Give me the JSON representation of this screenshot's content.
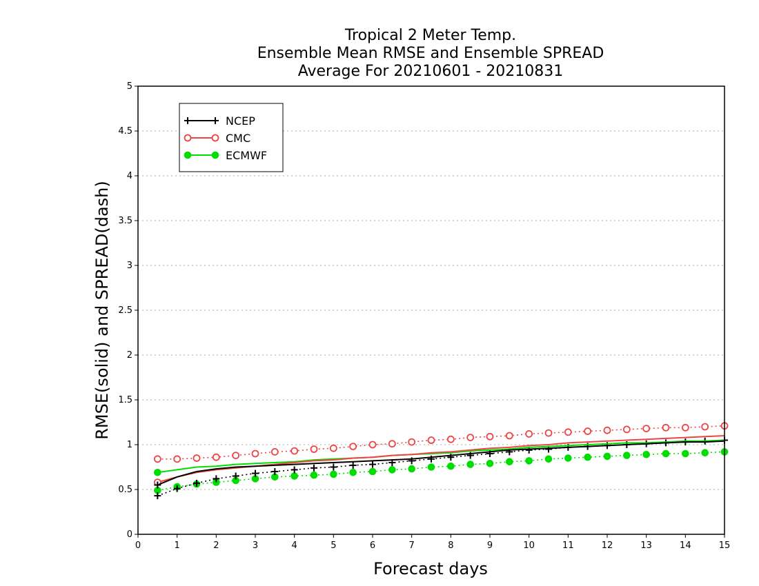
{
  "chart_data": {
    "type": "line",
    "title": [
      "Tropical 2 Meter Temp.",
      "Ensemble Mean RMSE and Ensemble SPREAD",
      "Average For 20210601 - 20210831"
    ],
    "xlabel": "Forecast days",
    "ylabel": "RMSE(solid) and SPREAD(dash)",
    "xlim": [
      0,
      15
    ],
    "ylim": [
      0,
      5
    ],
    "x_ticks": [
      "0",
      "1",
      "2",
      "3",
      "4",
      "5",
      "6",
      "7",
      "8",
      "9",
      "10",
      "11",
      "12",
      "13",
      "14",
      "15"
    ],
    "y_ticks": [
      "0",
      "0.5",
      "1",
      "1.5",
      "2",
      "2.5",
      "3",
      "3.5",
      "4",
      "4.5",
      "5"
    ],
    "grid": "horizontal dotted",
    "legend_position": "top-left",
    "x": [
      0.5,
      1,
      1.5,
      2,
      2.5,
      3,
      3.5,
      4,
      4.5,
      5,
      5.5,
      6,
      6.5,
      7,
      7.5,
      8,
      8.5,
      9,
      9.5,
      10,
      10.5,
      11,
      11.5,
      12,
      12.5,
      13,
      13.5,
      14,
      14.5,
      15
    ],
    "series": [
      {
        "name": "NCEP",
        "color": "#000000",
        "marker": "plus",
        "rmse": [
          0.55,
          0.64,
          0.7,
          0.73,
          0.75,
          0.76,
          0.77,
          0.78,
          0.79,
          0.8,
          0.81,
          0.82,
          0.83,
          0.84,
          0.86,
          0.88,
          0.9,
          0.92,
          0.94,
          0.95,
          0.96,
          0.97,
          0.98,
          0.99,
          1.0,
          1.01,
          1.02,
          1.03,
          1.03,
          1.04
        ],
        "spread": [
          0.43,
          0.51,
          0.57,
          0.62,
          0.65,
          0.68,
          0.7,
          0.72,
          0.74,
          0.75,
          0.77,
          0.78,
          0.8,
          0.82,
          0.84,
          0.86,
          0.88,
          0.9,
          0.92,
          0.94,
          0.95,
          0.97,
          0.98,
          0.99,
          1.0,
          1.01,
          1.02,
          1.03,
          1.04,
          1.05
        ]
      },
      {
        "name": "CMC",
        "color": "#ee4444",
        "marker": "open-circle",
        "rmse": [
          0.58,
          0.64,
          0.69,
          0.72,
          0.74,
          0.76,
          0.78,
          0.8,
          0.82,
          0.83,
          0.85,
          0.86,
          0.88,
          0.89,
          0.91,
          0.92,
          0.94,
          0.96,
          0.97,
          0.99,
          1.0,
          1.02,
          1.03,
          1.04,
          1.05,
          1.06,
          1.07,
          1.08,
          1.09,
          1.1
        ],
        "spread": [
          0.84,
          0.84,
          0.85,
          0.86,
          0.88,
          0.9,
          0.92,
          0.93,
          0.95,
          0.96,
          0.98,
          1.0,
          1.01,
          1.03,
          1.05,
          1.06,
          1.08,
          1.09,
          1.1,
          1.12,
          1.13,
          1.14,
          1.15,
          1.16,
          1.17,
          1.18,
          1.19,
          1.19,
          1.2,
          1.21
        ]
      },
      {
        "name": "ECMWF",
        "color": "#00dd00",
        "marker": "filled-circle",
        "rmse": [
          0.69,
          0.72,
          0.75,
          0.76,
          0.78,
          0.79,
          0.8,
          0.81,
          0.83,
          0.84,
          0.85,
          0.86,
          0.88,
          0.89,
          0.9,
          0.91,
          0.93,
          0.94,
          0.95,
          0.97,
          0.98,
          0.99,
          1.0,
          1.01,
          1.02,
          1.02,
          1.03,
          1.04,
          1.04,
          1.05
        ],
        "spread": [
          0.49,
          0.53,
          0.56,
          0.58,
          0.6,
          0.62,
          0.64,
          0.65,
          0.66,
          0.67,
          0.69,
          0.7,
          0.72,
          0.73,
          0.75,
          0.76,
          0.78,
          0.79,
          0.81,
          0.82,
          0.84,
          0.85,
          0.86,
          0.87,
          0.88,
          0.89,
          0.9,
          0.9,
          0.91,
          0.92
        ]
      }
    ]
  }
}
